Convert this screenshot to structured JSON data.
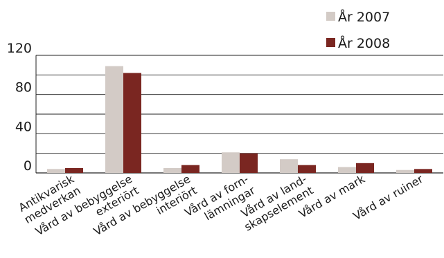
{
  "chart_data": {
    "type": "bar",
    "title": "",
    "xlabel": "",
    "ylabel": "",
    "ylim": [
      0,
      120
    ],
    "yticks": [
      "0",
      "40",
      "80",
      "120"
    ],
    "grid": true,
    "legend_position": "top-right",
    "categories": [
      [
        "Antikvarisk",
        "medverkan"
      ],
      [
        "Vård av bebyggelse",
        "exteriört"
      ],
      [
        "Vård av bebyggelse",
        "interiört"
      ],
      [
        "Vård av forn-",
        "lämningar"
      ],
      [
        "Vård av land-",
        "skapselement"
      ],
      [
        "Vård av mark"
      ],
      [
        "Vård av ruiner"
      ]
    ],
    "series": [
      {
        "name": "År 2007",
        "color": "#d3cbc6",
        "values": [
          4,
          109,
          5,
          21,
          14,
          6,
          3
        ]
      },
      {
        "name": "År 2008",
        "color": "#7a2621",
        "values": [
          5,
          102,
          8,
          20,
          8,
          10,
          4
        ]
      }
    ]
  }
}
